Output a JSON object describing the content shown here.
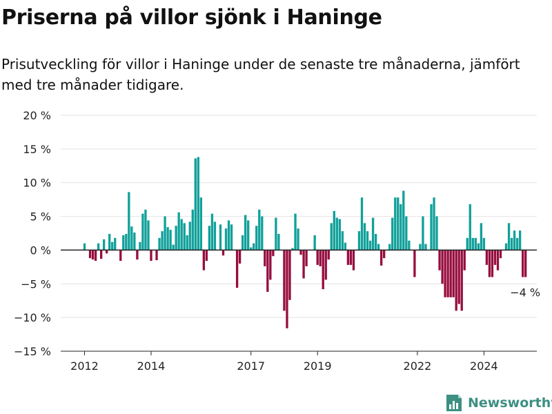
{
  "title": "Priserna på villor sjönk i Haninge",
  "subtitle": "Prisutveckling för villor i Haninge under de senaste tre månaderna, jämfört med tre månader tidigare.",
  "brand": "Newsworthy",
  "colors": {
    "positive": "#11a09a",
    "negative": "#960d3e",
    "grid": "#e2e2e2",
    "axis": "#222222",
    "brand": "#3d8f82"
  },
  "chart_data": {
    "type": "bar",
    "unit": "%",
    "ylim": [
      -15,
      20
    ],
    "yticks": [
      20,
      15,
      10,
      5,
      0,
      -5,
      -10,
      -15
    ],
    "ytick_labels": [
      "20 %",
      "15 %",
      "10 %",
      "5 %",
      "0 %",
      "−5 %",
      "−10 %",
      "−15 %"
    ],
    "xticks": [
      "2012",
      "2014",
      "2017",
      "2019",
      "2022",
      "2024"
    ],
    "x_start": "2012-01",
    "annotation": "−4 %",
    "values": [
      1.0,
      0,
      -1.2,
      -1.4,
      -1.6,
      1.0,
      -1.3,
      1.6,
      -0.5,
      2.4,
      1.2,
      1.8,
      0,
      -1.6,
      2.2,
      2.4,
      8.6,
      3.5,
      2.6,
      -1.4,
      1.2,
      5.4,
      6.0,
      4.4,
      -1.6,
      0,
      -1.5,
      1.8,
      2.8,
      5.0,
      3.4,
      3.0,
      0.8,
      3.6,
      5.6,
      4.6,
      4.0,
      2.2,
      4.2,
      6.0,
      13.6,
      13.8,
      7.8,
      -3.0,
      -1.6,
      3.6,
      5.4,
      4.2,
      0,
      3.8,
      -0.8,
      3.2,
      4.4,
      3.8,
      0,
      -5.6,
      -2.0,
      2.2,
      5.2,
      4.4,
      0.4,
      1.0,
      3.6,
      6.0,
      5.0,
      -2.4,
      -6.2,
      -4.4,
      -0.9,
      4.8,
      2.4,
      0,
      -9.0,
      -11.6,
      -7.4,
      0.3,
      5.4,
      3.2,
      -0.7,
      -4.2,
      -2.4,
      0,
      0,
      2.2,
      -2.2,
      -2.4,
      -5.8,
      -4.4,
      -1.4,
      4.0,
      5.8,
      4.8,
      4.6,
      2.8,
      1.1,
      -2.2,
      -2.2,
      -3.0,
      0,
      2.8,
      7.8,
      4.0,
      2.8,
      1.4,
      4.8,
      2.4,
      0.9,
      -2.3,
      -1.2,
      0,
      0.9,
      4.8,
      7.8,
      7.8,
      6.8,
      8.8,
      5.0,
      1.4,
      0,
      -4.0,
      0,
      0.9,
      5.0,
      0.9,
      0,
      6.8,
      7.8,
      5.0,
      -3.0,
      -5.0,
      -7.0,
      -7.0,
      -7.0,
      -7.0,
      -9.0,
      -8.0,
      -9.0,
      -3.0,
      1.8,
      6.8,
      1.8,
      1.8,
      1.0,
      4.0,
      1.8,
      -2.2,
      -4.0,
      -4.0,
      -2.2,
      -3.0,
      -1.2,
      0,
      1.0,
      4.0,
      1.8,
      2.9,
      1.8,
      2.9,
      -4.0,
      -4.0
    ]
  }
}
